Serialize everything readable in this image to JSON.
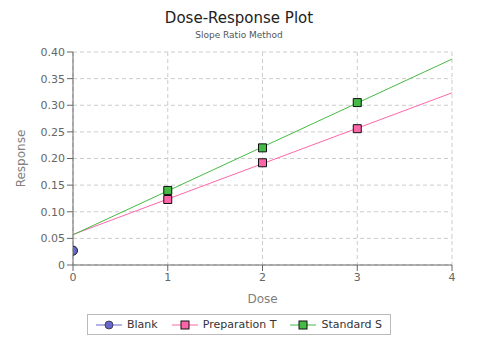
{
  "chart_data": {
    "type": "scatter",
    "title": "Dose-Response Plot",
    "subtitle": "Slope Ratio Method",
    "x_label": "Dose",
    "y_label": "Response",
    "xlim": [
      0,
      4
    ],
    "ylim": [
      0,
      0.4
    ],
    "xticks": [
      0,
      1,
      2,
      3,
      4
    ],
    "yticks": [
      0,
      0.05,
      {
        "value": 0.1,
        "label": "0.10"
      },
      0.15,
      {
        "value": 0.2,
        "label": "0.20"
      },
      0.25,
      {
        "value": 0.3,
        "label": "0.30"
      },
      0.35,
      {
        "value": 0.4,
        "label": "0.40"
      }
    ],
    "grid": true,
    "legend": "bottom",
    "series": [
      {
        "name": "Blank",
        "color": "#6666cc",
        "marker": "circle",
        "x": [
          0
        ],
        "values": [
          0.027
        ]
      },
      {
        "name": "Preparation T",
        "color": "#ff66aa",
        "marker": "square",
        "x": [
          1,
          2,
          3
        ],
        "values": [
          0.123,
          0.192,
          0.256
        ],
        "fit": {
          "x": [
            0,
            4
          ],
          "values": [
            0.0573333333,
            0.3233333333
          ]
        }
      },
      {
        "name": "Standard S",
        "color": "#44bb44",
        "marker": "square",
        "x": [
          1,
          2,
          3
        ],
        "values": [
          0.14,
          0.22,
          0.305
        ],
        "fit": {
          "x": [
            0,
            4
          ],
          "values": [
            0.0566666667,
            0.3866666667
          ]
        }
      }
    ]
  }
}
